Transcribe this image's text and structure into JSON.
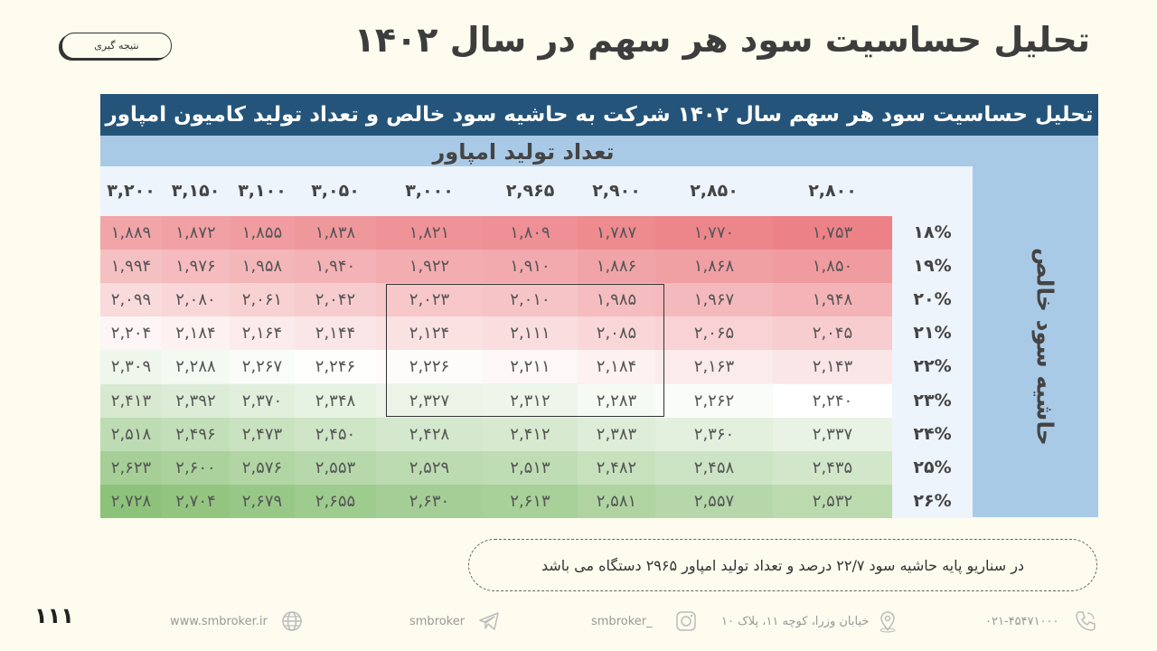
{
  "title": "تحلیل حساسیت سود هر سهم در سال ۱۴۰۲",
  "badge": "نتیجه گیری",
  "table": {
    "banner": "تحلیل حساسیت سود هر سهم سال ۱۴۰۲ شرکت به حاشیه سود خالص و تعداد تولید کامیون امپاور",
    "col_title": "تعداد تولید امپاور",
    "row_title": "حاشیه سود خالص",
    "columns": [
      "۳,۲۰۰",
      "۳,۱۵۰",
      "۳,۱۰۰",
      "۳,۰۵۰",
      "۳,۰۰۰",
      "۲,۹۶۵",
      "۲,۹۰۰",
      "۲,۸۵۰",
      "۲,۸۰۰"
    ],
    "rows": [
      {
        "label": "۱۸%",
        "values": [
          "۱,۸۸۹",
          "۱,۸۷۲",
          "۱,۸۵۵",
          "۱,۸۳۸",
          "۱,۸۲۱",
          "۱,۸۰۹",
          "۱,۷۸۷",
          "۱,۷۷۰",
          "۱,۷۵۳"
        ]
      },
      {
        "label": "۱۹%",
        "values": [
          "۱,۹۹۴",
          "۱,۹۷۶",
          "۱,۹۵۸",
          "۱,۹۴۰",
          "۱,۹۲۲",
          "۱,۹۱۰",
          "۱,۸۸۶",
          "۱,۸۶۸",
          "۱,۸۵۰"
        ]
      },
      {
        "label": "۲۰%",
        "values": [
          "۲,۰۹۹",
          "۲,۰۸۰",
          "۲,۰۶۱",
          "۲,۰۴۲",
          "۲,۰۲۳",
          "۲,۰۱۰",
          "۱,۹۸۵",
          "۱,۹۶۷",
          "۱,۹۴۸"
        ]
      },
      {
        "label": "۲۱%",
        "values": [
          "۲,۲۰۴",
          "۲,۱۸۴",
          "۲,۱۶۴",
          "۲,۱۴۴",
          "۲,۱۲۴",
          "۲,۱۱۱",
          "۲,۰۸۵",
          "۲,۰۶۵",
          "۲,۰۴۵"
        ]
      },
      {
        "label": "۲۲%",
        "values": [
          "۲,۳۰۹",
          "۲,۲۸۸",
          "۲,۲۶۷",
          "۲,۲۴۶",
          "۲,۲۲۶",
          "۲,۲۱۱",
          "۲,۱۸۴",
          "۲,۱۶۳",
          "۲,۱۴۳"
        ]
      },
      {
        "label": "۲۳%",
        "values": [
          "۲,۴۱۳",
          "۲,۳۹۲",
          "۲,۳۷۰",
          "۲,۳۴۸",
          "۲,۳۲۷",
          "۲,۳۱۲",
          "۲,۲۸۳",
          "۲,۲۶۲",
          "۲,۲۴۰"
        ]
      },
      {
        "label": "۲۴%",
        "values": [
          "۲,۵۱۸",
          "۲,۴۹۶",
          "۲,۴۷۳",
          "۲,۴۵۰",
          "۲,۴۲۸",
          "۲,۴۱۲",
          "۲,۳۸۳",
          "۲,۳۶۰",
          "۲,۳۳۷"
        ]
      },
      {
        "label": "۲۵%",
        "values": [
          "۲,۶۲۳",
          "۲,۶۰۰",
          "۲,۵۷۶",
          "۲,۵۵۳",
          "۲,۵۲۹",
          "۲,۵۱۳",
          "۲,۴۸۲",
          "۲,۴۵۸",
          "۲,۴۳۵"
        ]
      },
      {
        "label": "۲۶%",
        "values": [
          "۲,۷۲۸",
          "۲,۷۰۴",
          "۲,۶۷۹",
          "۲,۶۵۵",
          "۲,۶۳۰",
          "۲,۶۱۳",
          "۲,۵۸۱",
          "۲,۵۵۷",
          "۲,۵۳۲"
        ]
      }
    ],
    "colors": {
      "low": "#ec8287",
      "mid": "#ffffff",
      "high": "#8dc27a"
    }
  },
  "note": "در سناریو پایه حاشیه سود ۲۲/۷ درصد و تعداد تولید امپاور ۲۹۶۵ دستگاه می باشد",
  "page_number": "۱۱۱",
  "footer": {
    "website": "www.smbroker.ir",
    "telegram": "smbroker",
    "instagram": "smbroker_",
    "address": "خیابان وزرا، کوچه ۱۱، پلاک ۱۰",
    "phone": "۰۲۱-۴۵۴۷۱۰۰۰",
    "icons": [
      "globe-icon",
      "telegram-icon",
      "instagram-icon",
      "location-icon",
      "phone-icon"
    ]
  }
}
